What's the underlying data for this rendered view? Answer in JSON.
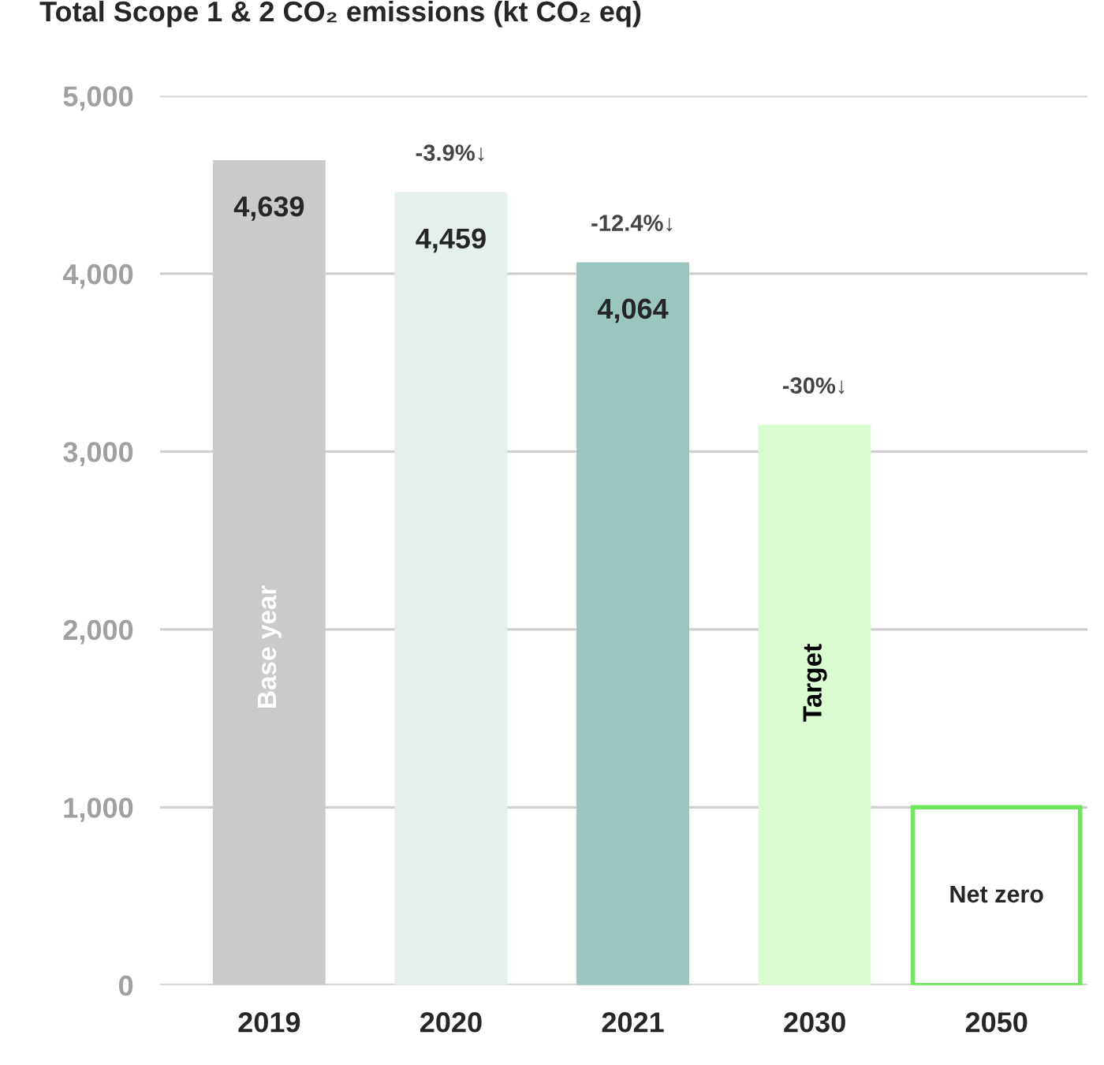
{
  "chart_data": {
    "type": "bar",
    "title": "Total Scope 1 & 2 CO₂ emissions (kt CO₂ eq)",
    "categories": [
      "2019",
      "2020",
      "2021",
      "2030",
      "2050"
    ],
    "values": [
      4639,
      4459,
      4064,
      3150,
      1000
    ],
    "value_labels": [
      "4,639",
      "4,459",
      "4,064",
      null,
      null
    ],
    "colors": [
      "#cacaca",
      "#e5f0ee",
      "#9bc6c0",
      "#d9fcd0",
      "#6ee85a"
    ],
    "annotations": [
      {
        "text": "-3.9%↓",
        "x": "2020",
        "y": 4459
      },
      {
        "text": "-12.4%↓",
        "x": "2021",
        "y": 4064
      },
      {
        "text": "-30%↓",
        "x": "2030",
        "y": 3150
      },
      "Base year",
      "Target",
      "Net zero"
    ],
    "ylim": [
      0,
      5000
    ],
    "yticks": [
      {
        "value": 0,
        "label": "0"
      },
      {
        "value": 1000,
        "label": "1,000"
      },
      {
        "value": 2000,
        "label": "2,000"
      },
      {
        "value": 3000,
        "label": "3,000"
      },
      {
        "value": 4000,
        "label": "4,000"
      },
      {
        "value": 5000,
        "label": "5,000"
      }
    ],
    "grid": "y"
  }
}
